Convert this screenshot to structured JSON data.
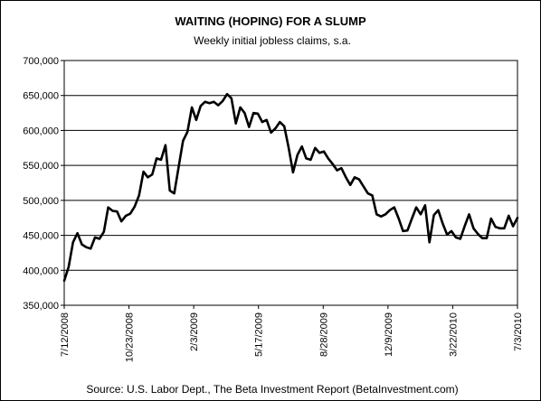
{
  "chart_data": {
    "type": "line",
    "title": "WAITING (HOPING) FOR A SLUMP",
    "subtitle": "Weekly initial jobless claims, s.a.",
    "source": "Source: U.S. Labor Dept., The Beta Investment Report (BetaInvestment.com)",
    "xlabel": "",
    "ylabel": "",
    "ylim": [
      350000,
      700000
    ],
    "yticks": [
      350000,
      400000,
      450000,
      500000,
      550000,
      600000,
      650000,
      700000
    ],
    "ytick_labels": [
      "350,000",
      "400,000",
      "450,000",
      "500,000",
      "550,000",
      "600,000",
      "650,000",
      "700,000"
    ],
    "xlim": [
      "2008-07-12",
      "2010-07-03"
    ],
    "xticks": [
      "2008-07-12",
      "2008-10-23",
      "2009-02-03",
      "2009-05-17",
      "2009-08-28",
      "2009-12-09",
      "2010-03-22",
      "2010-07-03"
    ],
    "xtick_labels": [
      "7/12/2008",
      "10/23/2008",
      "2/3/2009",
      "5/17/2009",
      "8/28/2009",
      "12/9/2009",
      "3/22/2010",
      "7/3/2010"
    ],
    "grid": "horizontal",
    "line_color": "#000000",
    "series": [
      {
        "x": [
          "2008-07-12",
          "2008-07-19",
          "2008-07-26",
          "2008-08-02",
          "2008-08-09",
          "2008-08-16",
          "2008-08-23",
          "2008-08-30",
          "2008-09-06",
          "2008-09-13",
          "2008-09-20",
          "2008-09-27",
          "2008-10-04",
          "2008-10-11",
          "2008-10-18",
          "2008-10-25",
          "2008-11-01",
          "2008-11-08",
          "2008-11-15",
          "2008-11-22",
          "2008-11-29",
          "2008-12-06",
          "2008-12-13",
          "2008-12-20",
          "2008-12-27",
          "2009-01-03",
          "2009-01-10",
          "2009-01-17",
          "2009-01-24",
          "2009-01-31",
          "2009-02-07",
          "2009-02-14",
          "2009-02-21",
          "2009-02-28",
          "2009-03-07",
          "2009-03-14",
          "2009-03-21",
          "2009-03-28",
          "2009-04-04",
          "2009-04-11",
          "2009-04-18",
          "2009-04-25",
          "2009-05-02",
          "2009-05-09",
          "2009-05-16",
          "2009-05-23",
          "2009-05-30",
          "2009-06-06",
          "2009-06-13",
          "2009-06-20",
          "2009-06-27",
          "2009-07-04",
          "2009-07-11",
          "2009-07-18",
          "2009-07-25",
          "2009-08-01",
          "2009-08-08",
          "2009-08-15",
          "2009-08-22",
          "2009-08-29",
          "2009-09-05",
          "2009-09-12",
          "2009-09-19",
          "2009-09-26",
          "2009-10-03",
          "2009-10-10",
          "2009-10-17",
          "2009-10-24",
          "2009-10-31",
          "2009-11-07",
          "2009-11-14",
          "2009-11-21",
          "2009-11-28",
          "2009-12-05",
          "2009-12-12",
          "2009-12-19",
          "2009-12-26",
          "2010-01-02",
          "2010-01-09",
          "2010-01-16",
          "2010-01-23",
          "2010-01-30",
          "2010-02-06",
          "2010-02-13",
          "2010-02-20",
          "2010-02-27",
          "2010-03-06",
          "2010-03-13",
          "2010-03-20",
          "2010-03-27",
          "2010-04-03",
          "2010-04-10",
          "2010-04-17",
          "2010-04-24",
          "2010-05-01",
          "2010-05-08",
          "2010-05-15",
          "2010-05-22",
          "2010-05-29",
          "2010-06-05",
          "2010-06-12",
          "2010-06-19",
          "2010-06-26",
          "2010-07-03"
        ],
        "values": [
          385000,
          405000,
          440000,
          453000,
          437000,
          433000,
          431000,
          447000,
          445000,
          455000,
          490000,
          485000,
          484000,
          470000,
          478000,
          481000,
          491000,
          507000,
          541000,
          533000,
          537000,
          560000,
          558000,
          579000,
          514000,
          510000,
          548000,
          585000,
          598000,
          633000,
          615000,
          635000,
          641000,
          639000,
          641000,
          636000,
          642000,
          652000,
          646000,
          610000,
          633000,
          625000,
          605000,
          625000,
          624000,
          612000,
          615000,
          597000,
          603000,
          612000,
          606000,
          575000,
          540000,
          565000,
          577000,
          560000,
          558000,
          575000,
          568000,
          570000,
          560000,
          552000,
          543000,
          546000,
          533000,
          522000,
          533000,
          530000,
          520000,
          510000,
          507000,
          480000,
          477000,
          480000,
          486000,
          490000,
          474000,
          456000,
          457000,
          474000,
          490000,
          480000,
          493000,
          440000,
          479000,
          486000,
          467000,
          451000,
          456000,
          447000,
          445000,
          463000,
          480000,
          460000,
          452000,
          446000,
          446000,
          474000,
          462000,
          460000,
          460000,
          478000,
          463000,
          475000
        ]
      }
    ]
  }
}
